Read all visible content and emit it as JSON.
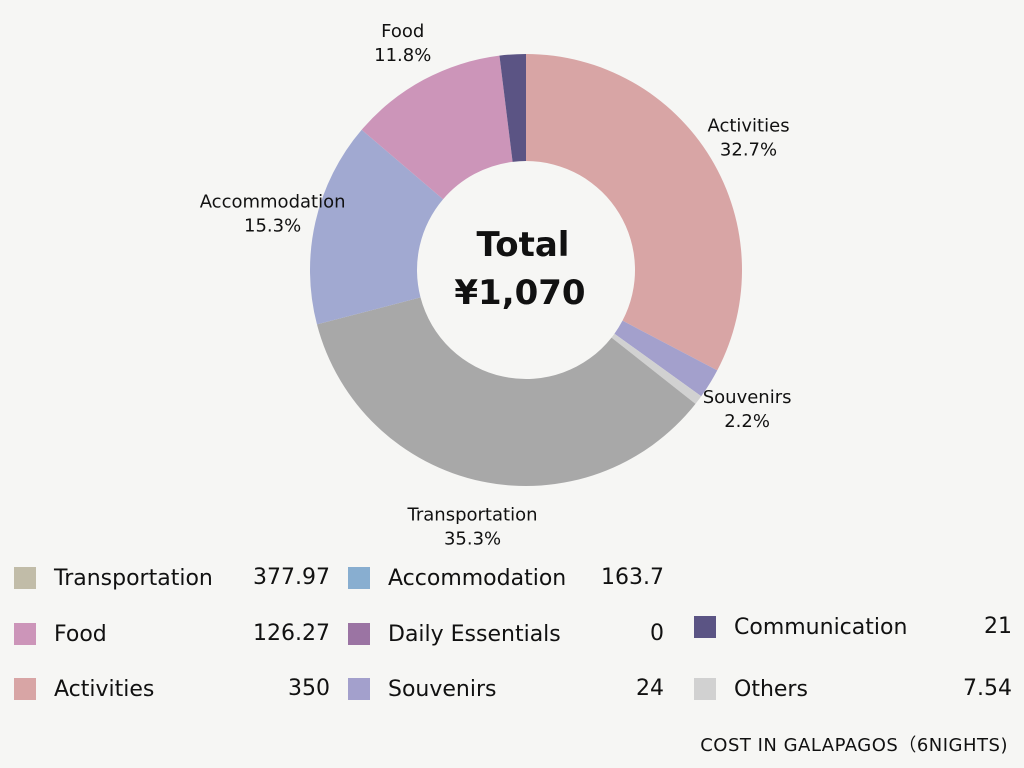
{
  "chart_data": {
    "type": "pie",
    "variant": "donut",
    "center": {
      "title": "Total",
      "value": "¥1,070"
    },
    "slices": [
      {
        "name": "Activities",
        "value": 350,
        "percent_label": "32.7%",
        "color": "#d8a5a5",
        "labeled": true
      },
      {
        "name": "Souvenirs",
        "value": 24,
        "percent_label": "2.2%",
        "color": "#a3a0cc",
        "labeled": true
      },
      {
        "name": "Others",
        "value": 7.54,
        "percent_label": "",
        "color": "#d1d1d1",
        "labeled": false
      },
      {
        "name": "Transportation",
        "value": 377.97,
        "percent_label": "35.3%",
        "color": "#a8a8a8",
        "labeled": true
      },
      {
        "name": "Accommodation",
        "value": 163.7,
        "percent_label": "15.3%",
        "color": "#a1a9d1",
        "labeled": true
      },
      {
        "name": "Food",
        "value": 126.27,
        "percent_label": "11.8%",
        "color": "#cc95b9",
        "labeled": true
      },
      {
        "name": "Daily Essentials",
        "value": 0,
        "percent_label": "",
        "color": "#9b74a3",
        "labeled": false
      },
      {
        "name": "Communication",
        "value": 21,
        "percent_label": "",
        "color": "#5b5484",
        "labeled": false
      }
    ],
    "legend": [
      {
        "name": "Transportation",
        "value": "377.97",
        "color": "#c1bca8"
      },
      {
        "name": "Accommodation",
        "value": "163.7",
        "color": "#88aed0"
      },
      {
        "name": "Food",
        "value": "126.27",
        "color": "#cc95b9"
      },
      {
        "name": "Daily Essentials",
        "value": "0",
        "color": "#9b74a3"
      },
      {
        "name": "Activities",
        "value": "350",
        "color": "#d8a5a5"
      },
      {
        "name": "Souvenirs",
        "value": "24",
        "color": "#a3a0cc"
      },
      {
        "name": "Communication",
        "value": "21",
        "color": "#5b5484"
      },
      {
        "name": "Others",
        "value": "7.54",
        "color": "#d1d1d1"
      }
    ],
    "legend_placement": "bottom"
  },
  "caption": "COST IN GALAPAGOS（6NIGHTS)"
}
